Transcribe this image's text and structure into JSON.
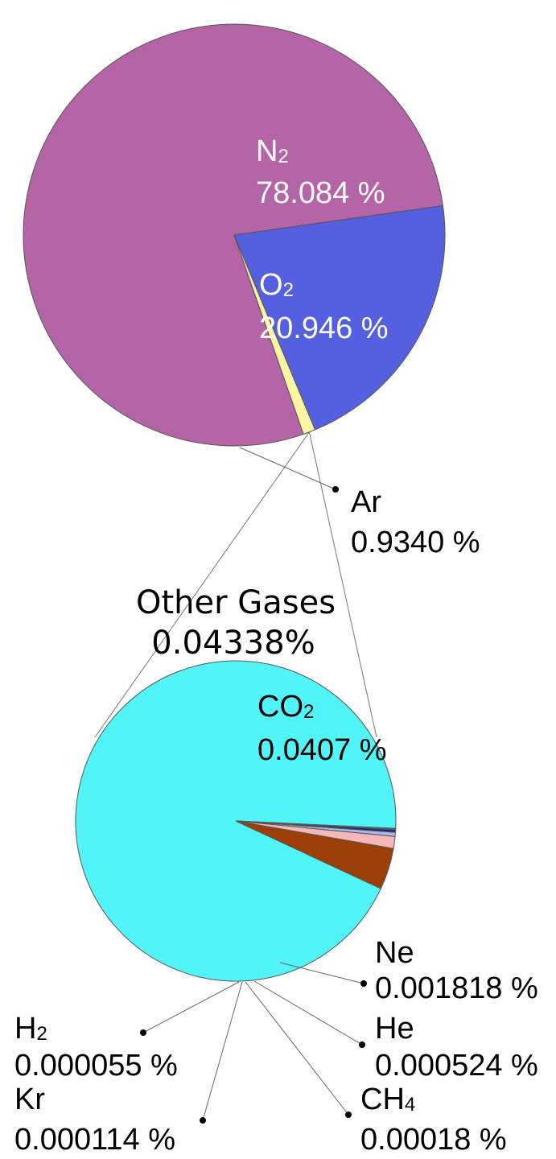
{
  "chart_data": [
    {
      "type": "pie",
      "slices": [
        {
          "label": "N",
          "sub": "2",
          "value_label": "78.084 %",
          "value": 78.084,
          "color": "#b565a7",
          "label_color": "white"
        },
        {
          "label": "O",
          "sub": "2",
          "value_label": "20.946 %",
          "value": 20.946,
          "color": "#5560e0",
          "label_color": "white"
        },
        {
          "label": "Ar",
          "sub": "",
          "value_label": "0.9340 %",
          "value": 0.934,
          "color": "#fdf5a2",
          "label_color": "black"
        }
      ]
    },
    {
      "type": "pie",
      "title": "Other Gases",
      "subtitle": "0.04338%",
      "slices": [
        {
          "label": "CO",
          "sub": "2",
          "value_label": "0.0407 %",
          "value": 0.0407,
          "color": "#52f5f7"
        },
        {
          "label": "Ne",
          "sub": "",
          "value_label": "0.001818 %",
          "value": 0.001818,
          "color": "#9b3f06"
        },
        {
          "label": "He",
          "sub": "",
          "value_label": "0.000524 %",
          "value": 0.000524,
          "color": "#f7b7b9"
        },
        {
          "label": "CH",
          "sub": "4",
          "value_label": "0.00018 %",
          "value": 0.00018,
          "color": "#a9b8e6"
        },
        {
          "label": "Kr",
          "sub": "",
          "value_label": "0.000114 %",
          "value": 0.000114,
          "color": "#0d2b8c"
        },
        {
          "label": "H",
          "sub": "2",
          "value_label": "0.000055 %",
          "value": 5.5e-05,
          "color": "#4a8a3a"
        }
      ]
    }
  ]
}
